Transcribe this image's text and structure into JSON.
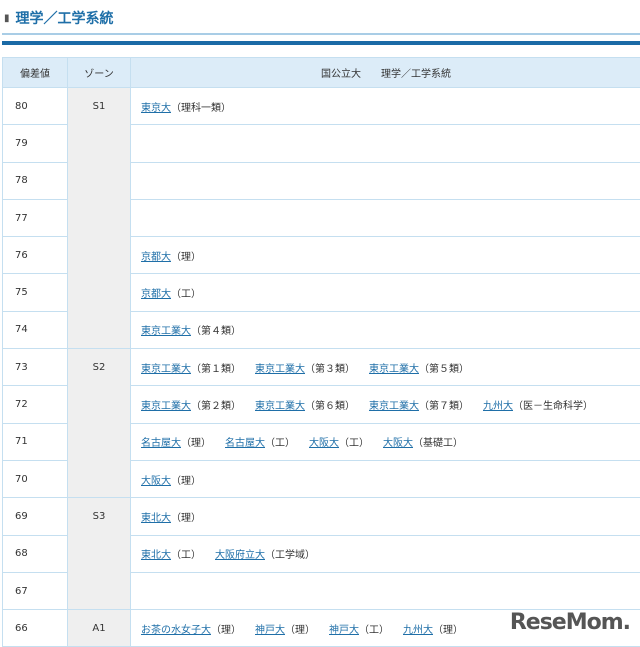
{
  "title": "理学／工学系統",
  "headers": [
    "偏差値",
    "ゾーン",
    "国公立大　　理学／工学系統"
  ],
  "zones": [
    {
      "label": "S1",
      "span": 7
    },
    {
      "label": "S2",
      "span": 4
    },
    {
      "label": "S3",
      "span": 3
    },
    {
      "label": "A1",
      "span": 1
    }
  ],
  "rows": [
    {
      "score": "80",
      "entries": [
        {
          "name": "東京大",
          "note": "（理科一類）"
        }
      ]
    },
    {
      "score": "79",
      "entries": []
    },
    {
      "score": "78",
      "entries": []
    },
    {
      "score": "77",
      "entries": []
    },
    {
      "score": "76",
      "entries": [
        {
          "name": "京都大",
          "note": "（理）"
        }
      ]
    },
    {
      "score": "75",
      "entries": [
        {
          "name": "京都大",
          "note": "（工）"
        }
      ]
    },
    {
      "score": "74",
      "entries": [
        {
          "name": "東京工業大",
          "note": "（第４類）"
        }
      ]
    },
    {
      "score": "73",
      "entries": [
        {
          "name": "東京工業大",
          "note": "（第１類）"
        },
        {
          "name": "東京工業大",
          "note": "（第３類）"
        },
        {
          "name": "東京工業大",
          "note": "（第５類）"
        }
      ]
    },
    {
      "score": "72",
      "entries": [
        {
          "name": "東京工業大",
          "note": "（第２類）"
        },
        {
          "name": "東京工業大",
          "note": "（第６類）"
        },
        {
          "name": "東京工業大",
          "note": "（第７類）"
        },
        {
          "name": "九州大",
          "note": "（医－生命科学）"
        }
      ]
    },
    {
      "score": "71",
      "entries": [
        {
          "name": "名古屋大",
          "note": "（理）"
        },
        {
          "name": "名古屋大",
          "note": "（工）"
        },
        {
          "name": "大阪大",
          "note": "（工）"
        },
        {
          "name": "大阪大",
          "note": "（基礎工）"
        }
      ]
    },
    {
      "score": "70",
      "entries": [
        {
          "name": "大阪大",
          "note": "（理）"
        }
      ]
    },
    {
      "score": "69",
      "entries": [
        {
          "name": "東北大",
          "note": "（理）"
        }
      ]
    },
    {
      "score": "68",
      "entries": [
        {
          "name": "東北大",
          "note": "（工）"
        },
        {
          "name": "大阪府立大",
          "note": "（工学域）"
        }
      ]
    },
    {
      "score": "67",
      "entries": []
    },
    {
      "score": "66",
      "entries": [
        {
          "name": "お茶の水女子大",
          "note": "（理）"
        },
        {
          "name": "神戸大",
          "note": "（理）"
        },
        {
          "name": "神戸大",
          "note": "（工）"
        },
        {
          "name": "九州大",
          "note": "（理）"
        }
      ]
    }
  ],
  "watermark": "ReseMom",
  "colors": {
    "accent": "#1a6aa6",
    "header_bg": "#dcecf8",
    "zone_bg": "#efefef",
    "link": "#1f6fa8"
  }
}
